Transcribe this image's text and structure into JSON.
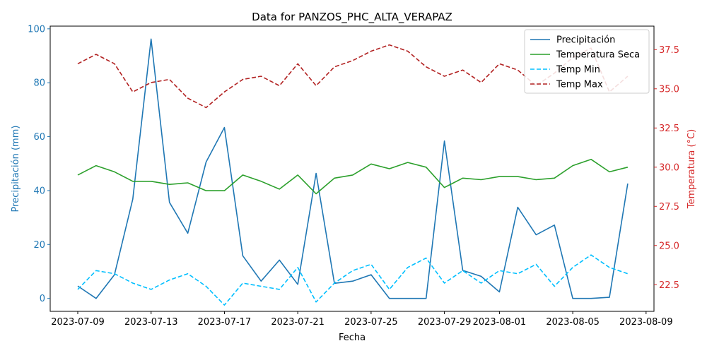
{
  "chart_data": {
    "type": "line",
    "title": "Data for PANZOS_PHC_ALTA_VERAPAZ",
    "xlabel": "Fecha",
    "ylabel_left": "Precipitación (mm)",
    "ylabel_right": "Temperatura (°C)",
    "x_tick_labels": [
      "2023-07-09",
      "2023-07-13",
      "2023-07-17",
      "2023-07-21",
      "2023-07-25",
      "2023-07-29",
      "2023-08-01",
      "2023-08-05",
      "2023-08-09"
    ],
    "ylim_left": [
      -4.8,
      101
    ],
    "yticks_left": [
      "0",
      "20",
      "40",
      "60",
      "80",
      "100"
    ],
    "ylim_right": [
      20.8,
      39.0
    ],
    "yticks_right": [
      "22.5",
      "25.0",
      "27.5",
      "30.0",
      "32.5",
      "35.0",
      "37.5"
    ],
    "legend_position": "upper right",
    "grid": false,
    "colors": {
      "precip": "#1f77b4",
      "temp_seca": "#2ca02c",
      "temp_min": "#00bfff",
      "temp_max": "#b22222",
      "left_axis": "#1f77b4",
      "right_axis": "#d62728"
    },
    "x": [
      "2023-07-09",
      "2023-07-10",
      "2023-07-11",
      "2023-07-12",
      "2023-07-13",
      "2023-07-14",
      "2023-07-15",
      "2023-07-16",
      "2023-07-17",
      "2023-07-18",
      "2023-07-19",
      "2023-07-20",
      "2023-07-21",
      "2023-07-22",
      "2023-07-23",
      "2023-07-24",
      "2023-07-25",
      "2023-07-26",
      "2023-07-27",
      "2023-07-28",
      "2023-07-29",
      "2023-07-30",
      "2023-07-31",
      "2023-08-01",
      "2023-08-02",
      "2023-08-03",
      "2023-08-04",
      "2023-08-05",
      "2023-08-06",
      "2023-08-07",
      "2023-08-08"
    ],
    "series": [
      {
        "name": "Precipitación",
        "axis": "left",
        "style": "solid",
        "values": [
          4.6,
          0.0,
          8.8,
          36.8,
          96.2,
          35.6,
          24.2,
          50.6,
          63.4,
          15.8,
          6.4,
          14.2,
          5.2,
          46.4,
          5.6,
          6.4,
          8.8,
          0.0,
          0.0,
          0.0,
          58.4,
          10.4,
          8.2,
          2.4,
          33.8,
          23.6,
          27.2,
          0.0,
          0.0,
          0.4,
          42.6
        ]
      },
      {
        "name": "Temperatura Seca",
        "axis": "right",
        "style": "solid",
        "values": [
          29.5,
          30.1,
          29.7,
          29.1,
          29.1,
          28.9,
          29.0,
          28.5,
          28.5,
          29.5,
          29.1,
          28.6,
          29.5,
          28.3,
          29.3,
          29.5,
          30.2,
          29.9,
          30.3,
          30.0,
          28.7,
          29.3,
          29.2,
          29.4,
          29.4,
          29.2,
          29.3,
          30.1,
          30.5,
          29.7,
          30.0
        ]
      },
      {
        "name": "Temp Min",
        "axis": "right",
        "style": "dashed",
        "values": [
          22.2,
          23.4,
          23.2,
          22.6,
          22.2,
          22.8,
          23.2,
          22.4,
          21.2,
          22.6,
          22.4,
          22.2,
          23.6,
          21.4,
          22.6,
          23.4,
          23.8,
          22.2,
          23.6,
          24.2,
          22.6,
          23.4,
          22.6,
          23.4,
          23.2,
          23.8,
          22.4,
          23.6,
          24.4,
          23.6,
          23.2
        ]
      },
      {
        "name": "Temp Max",
        "axis": "right",
        "style": "dashed",
        "values": [
          36.6,
          37.2,
          36.6,
          34.8,
          35.4,
          35.6,
          34.4,
          33.8,
          34.8,
          35.6,
          35.8,
          35.2,
          36.6,
          35.2,
          36.4,
          36.8,
          37.4,
          37.8,
          37.4,
          36.4,
          35.8,
          36.2,
          35.4,
          36.6,
          36.2,
          35.2,
          36.0,
          37.0,
          37.6,
          34.8,
          35.8
        ]
      }
    ]
  }
}
